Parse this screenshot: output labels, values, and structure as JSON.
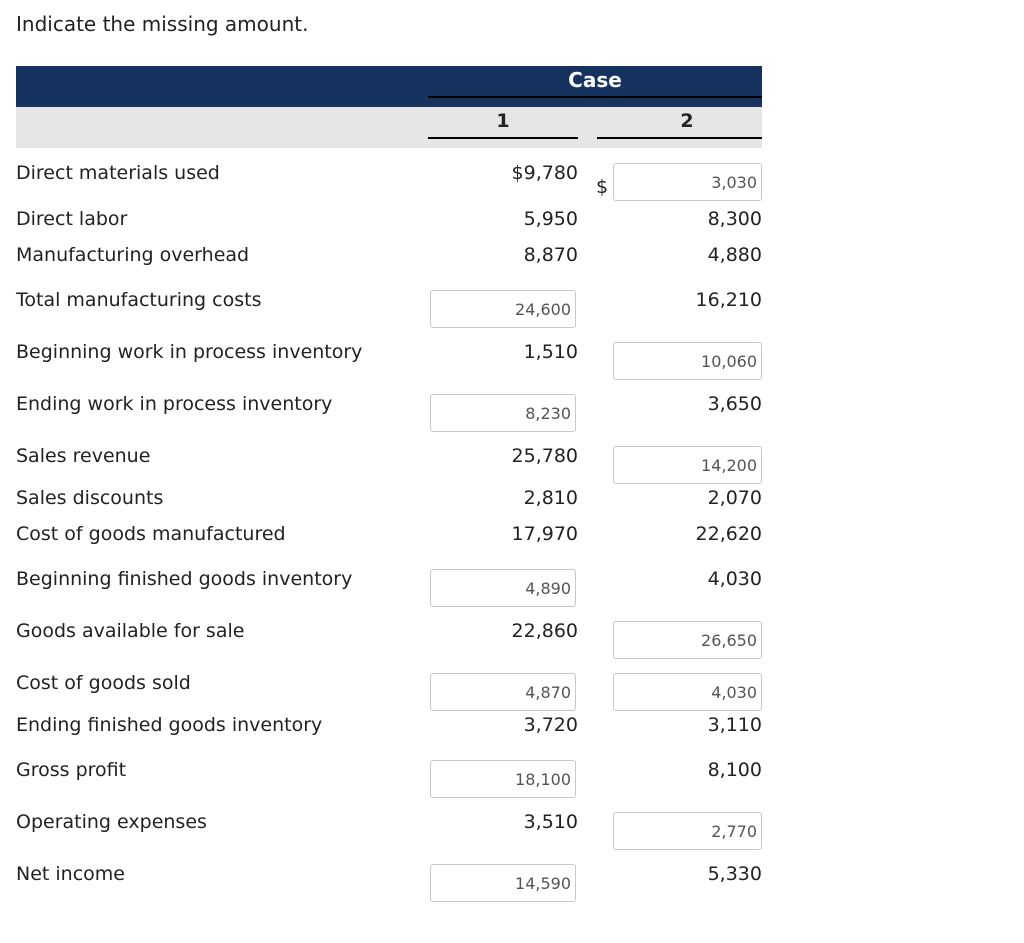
{
  "title": "Indicate the missing amount.",
  "header": {
    "case": "Case",
    "col1": "1",
    "col2": "2"
  },
  "rows": [
    {
      "label": "Direct materials used",
      "c1": "$9,780",
      "c2": "3,030",
      "c1_input": false,
      "c2_input": true,
      "c2_prefix": "$"
    },
    {
      "label": "Direct labor",
      "c1": "5,950",
      "c2": "8,300",
      "c1_input": false,
      "c2_input": false
    },
    {
      "label": "Manufacturing overhead",
      "c1": "8,870",
      "c2": "4,880",
      "c1_input": false,
      "c2_input": false
    },
    {
      "label": "Total manufacturing costs",
      "c1": "24,600",
      "c2": "16,210",
      "c1_input": true,
      "c2_input": false
    },
    {
      "label": "Beginning work in process inventory",
      "c1": "1,510",
      "c2": "10,060",
      "c1_input": false,
      "c2_input": true
    },
    {
      "label": "Ending work in process inventory",
      "c1": "8,230",
      "c2": "3,650",
      "c1_input": true,
      "c2_input": false
    },
    {
      "label": "Sales revenue",
      "c1": "25,780",
      "c2": "14,200",
      "c1_input": false,
      "c2_input": true
    },
    {
      "label": "Sales discounts",
      "c1": "2,810",
      "c2": "2,070",
      "c1_input": false,
      "c2_input": false
    },
    {
      "label": "Cost of goods manufactured",
      "c1": "17,970",
      "c2": "22,620",
      "c1_input": false,
      "c2_input": false
    },
    {
      "label": "Beginning finished goods inventory",
      "c1": "4,890",
      "c2": "4,030",
      "c1_input": true,
      "c2_input": false
    },
    {
      "label": "Goods available for sale",
      "c1": "22,860",
      "c2": "26,650",
      "c1_input": false,
      "c2_input": true
    },
    {
      "label": "Cost of goods sold",
      "c1": "4,870",
      "c2": "4,030",
      "c1_input": true,
      "c2_input": true
    },
    {
      "label": "Ending finished goods inventory",
      "c1": "3,720",
      "c2": "3,110",
      "c1_input": false,
      "c2_input": false
    },
    {
      "label": "Gross profit",
      "c1": "18,100",
      "c2": "8,100",
      "c1_input": true,
      "c2_input": false
    },
    {
      "label": "Operating expenses",
      "c1": "3,510",
      "c2": "2,770",
      "c1_input": false,
      "c2_input": true
    },
    {
      "label": "Net income",
      "c1": "14,590",
      "c2": "5,330",
      "c1_input": true,
      "c2_input": false
    }
  ]
}
